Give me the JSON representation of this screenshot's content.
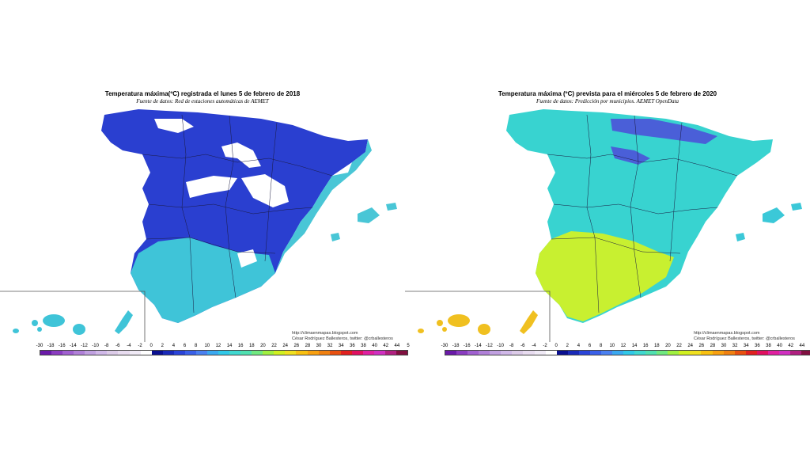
{
  "maps": [
    {
      "title": "Temperatura máxima(ºC) registrada el lunes 5 de febrero de 2018",
      "source": "Fuente de datos: Red de estaciones automáticas de AEMET",
      "url": "http://climaenmapas.blogspot.com",
      "author": "César Rodríguez Ballesteros, twitter: @crballesteros",
      "base_color": "#2a3fd0",
      "coast_color": "#49c6d6",
      "south_color": "#3fc4d8",
      "snow_color": "#ffffff",
      "canary_color": "#3fc4d8"
    },
    {
      "title": "Temperatura máxima (ºC) prevista para el miércoles 5 de febrero de 2020",
      "source": "Fuente de datos: Predicción por municipios. AEMET OpenData",
      "url": "http://climaenmapas.blogspot.com",
      "author": "César Rodríguez Ballesteros, twitter: @crballesteros",
      "base_color": "#38d3d0",
      "coast_color": "#3bc8d8",
      "south_color": "#c8f030",
      "snow_color": "#4a5fd8",
      "canary_color": "#f0c020"
    }
  ],
  "scale": {
    "labels": [
      "-30",
      "-18",
      "-16",
      "-14",
      "-12",
      "-10",
      "-8",
      "-6",
      "-4",
      "-2",
      "0",
      "2",
      "4",
      "6",
      "8",
      "10",
      "12",
      "14",
      "16",
      "18",
      "20",
      "22",
      "24",
      "26",
      "28",
      "30",
      "32",
      "34",
      "36",
      "38",
      "40",
      "42",
      "44",
      "5"
    ],
    "colors": [
      "#6a1aa8",
      "#8a3cc0",
      "#a060d0",
      "#b080d8",
      "#c0a0e0",
      "#d0b8e8",
      "#dccbe8",
      "#e8dcf0",
      "#f0eaf6",
      "#ffffff",
      "#0a1090",
      "#1a2ab8",
      "#2a44d8",
      "#3a60e8",
      "#4a80f0",
      "#3aa8f0",
      "#30c8e8",
      "#40d8d0",
      "#50e0b0",
      "#70e880",
      "#a0f040",
      "#d0f020",
      "#f0e020",
      "#f8c010",
      "#f8a010",
      "#f08010",
      "#e85010",
      "#e02020",
      "#e01060",
      "#e020a0",
      "#d030c0",
      "#b02080",
      "#801040"
    ]
  }
}
